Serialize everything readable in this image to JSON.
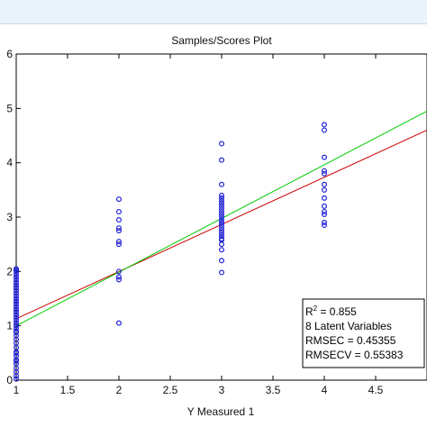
{
  "chart_data": {
    "type": "scatter",
    "title": "Samples/Scores Plot",
    "xlabel": "Y Measured 1",
    "ylabel": "",
    "xlim": [
      1,
      5
    ],
    "ylim": [
      0,
      6
    ],
    "xticks": [
      "1",
      "1.5",
      "2",
      "2.5",
      "3",
      "3.5",
      "4",
      "4.5"
    ],
    "yticks": [
      "0",
      "1",
      "2",
      "3",
      "4",
      "5",
      "6"
    ],
    "grid": false,
    "colors": {
      "points": "#1f1fd6",
      "fit_line": "#cc0000",
      "ideal_line": "#00cc00"
    },
    "series": [
      {
        "type": "scatter",
        "x": [
          1,
          1,
          1,
          1,
          1,
          1,
          1,
          1,
          1,
          1,
          1,
          1,
          1,
          1,
          1,
          1,
          1,
          1,
          1,
          1,
          1,
          1,
          1,
          1,
          1,
          1,
          1,
          1,
          1,
          1,
          1,
          1,
          1,
          1,
          1,
          1,
          1,
          1,
          1,
          1,
          1,
          1,
          1,
          2,
          2,
          2,
          2,
          2,
          2,
          2,
          2,
          2,
          2,
          2,
          3,
          3,
          3,
          3,
          3,
          3,
          3,
          3,
          3,
          3,
          3,
          3,
          3,
          3,
          3,
          3,
          3,
          3,
          3,
          3,
          3,
          3,
          3,
          3,
          3,
          3,
          4,
          4,
          4,
          4,
          4,
          4,
          4,
          4,
          4,
          4,
          4,
          4,
          4
        ],
        "y": [
          0.02,
          0.08,
          0.15,
          0.22,
          0.3,
          0.38,
          0.45,
          0.52,
          0.6,
          0.68,
          0.75,
          0.82,
          0.88,
          0.95,
          1.0,
          1.05,
          1.1,
          1.15,
          1.2,
          1.25,
          1.3,
          1.35,
          1.4,
          1.45,
          1.5,
          1.55,
          1.6,
          1.65,
          1.7,
          1.75,
          1.8,
          1.85,
          1.9,
          1.95,
          2.0,
          2.05,
          0.5,
          0.9,
          1.3,
          1.7,
          2.02,
          0.35,
          1.45,
          1.05,
          1.85,
          1.9,
          2.0,
          2.5,
          2.55,
          2.75,
          2.8,
          2.95,
          3.1,
          3.33,
          1.98,
          2.2,
          2.4,
          2.5,
          2.6,
          2.7,
          2.75,
          2.8,
          2.85,
          2.9,
          2.95,
          3.0,
          3.05,
          3.1,
          3.15,
          3.2,
          3.25,
          3.3,
          3.35,
          3.4,
          3.6,
          4.05,
          4.35,
          2.65,
          2.58,
          2.9,
          2.85,
          2.9,
          3.05,
          3.1,
          3.2,
          3.35,
          3.5,
          3.6,
          3.8,
          3.85,
          4.1,
          4.6,
          4.7
        ]
      },
      {
        "type": "line",
        "x": [
          1,
          5
        ],
        "y": [
          1.13,
          4.6
        ]
      },
      {
        "type": "line",
        "x": [
          1,
          5
        ],
        "y": [
          1.0,
          4.95
        ]
      }
    ],
    "legend_box": {
      "placement": "bottom-right",
      "r2_label": "R",
      "r2_sup": "2",
      "r2_value": " = 0.855",
      "lines": [
        "8 Latent Variables",
        "RMSEC = 0.45355",
        "RMSECV = 0.55383"
      ]
    }
  }
}
